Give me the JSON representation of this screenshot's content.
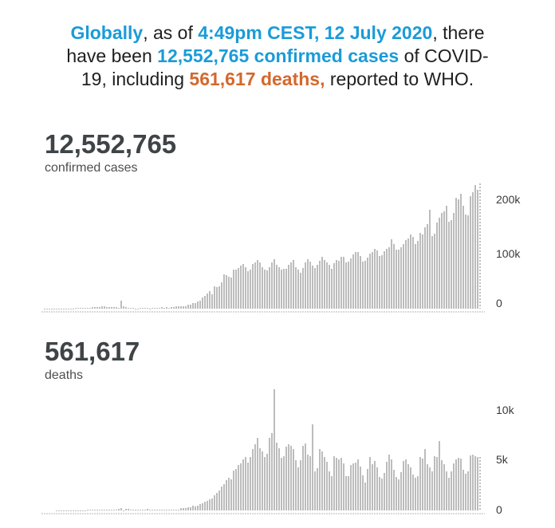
{
  "colors": {
    "highlight_blue": "#1b9bd8",
    "highlight_orange": "#d4682c",
    "bar_gray": "#bcbcbc",
    "text_dark": "#1f1f1f",
    "counter_dark": "#3f4446"
  },
  "headline": {
    "lines": [
      [
        {
          "t": "Globally",
          "s": "blue"
        },
        {
          "t": ", as of ",
          "s": "plain"
        },
        {
          "t": "4:49pm CEST, 12 July 2020",
          "s": "blue"
        },
        {
          "t": ", there",
          "s": "plain"
        }
      ],
      [
        {
          "t": "have been ",
          "s": "plain"
        },
        {
          "t": "12,552,765 confirmed cases",
          "s": "blue"
        },
        {
          "t": " of COVID-",
          "s": "plain"
        }
      ],
      [
        {
          "t": "19, including ",
          "s": "plain"
        },
        {
          "t": "561,617 deaths,",
          "s": "orange"
        },
        {
          "t": " reported to WHO.",
          "s": "plain"
        }
      ]
    ]
  },
  "counters": {
    "cases": {
      "value": "12,552,765",
      "label": "confirmed cases"
    },
    "deaths": {
      "value": "561,617",
      "label": "deaths"
    }
  },
  "chart_data": [
    {
      "type": "bar",
      "title": "confirmed cases",
      "total": "12,552,765",
      "x_axis": {
        "unit": "days",
        "points": 184,
        "end": "12 July 2020"
      },
      "ylim": [
        0,
        235000
      ],
      "grid": false,
      "legend": "none",
      "tick_side": "right",
      "yticks": [
        {
          "label": "200k",
          "value": 200000
        },
        {
          "label": "100k",
          "value": 100000
        },
        {
          "label": "0",
          "value": 0
        }
      ],
      "values": [
        0,
        1,
        6,
        8,
        14,
        22,
        45,
        60,
        90,
        140,
        150,
        280,
        460,
        700,
        780,
        1750,
        1450,
        1750,
        2000,
        1700,
        2100,
        2600,
        2800,
        3000,
        3400,
        3900,
        3700,
        3200,
        2600,
        3000,
        3100,
        2500,
        2000,
        15150,
        4000,
        2600,
        2200,
        2100,
        1900,
        560,
        540,
        900,
        1000,
        1300,
        1000,
        700,
        900,
        1350,
        1450,
        1800,
        2300,
        2000,
        2600,
        2200,
        2500,
        2800,
        4000,
        3700,
        3900,
        4200,
        4600,
        7500,
        7000,
        10000,
        11000,
        13900,
        15100,
        20000,
        24000,
        28000,
        32000,
        26000,
        40800,
        39800,
        40700,
        49200,
        63200,
        62000,
        58400,
        57600,
        72800,
        72700,
        75600,
        79300,
        82000,
        77200,
        68800,
        71500,
        82000,
        84700,
        89600,
        85000,
        76500,
        71800,
        70100,
        76600,
        84800,
        91500,
        81000,
        76800,
        72500,
        74000,
        73900,
        81500,
        84900,
        89600,
        76500,
        72100,
        66300,
        75500,
        84800,
        91900,
        86100,
        78700,
        74600,
        81200,
        87700,
        95800,
        90200,
        85600,
        80200,
        74200,
        84200,
        89600,
        88000,
        96000,
        94900,
        85100,
        86600,
        92500,
        99800,
        104500,
        103900,
        96400,
        87200,
        88900,
        94700,
        101200,
        104000,
        110300,
        106800,
        97700,
        98400,
        105600,
        110400,
        113700,
        128400,
        119600,
        108900,
        108200,
        113500,
        118700,
        127100,
        129000,
        136400,
        132600,
        119500,
        125200,
        140100,
        137200,
        150100,
        156000,
        183000,
        133300,
        138600,
        158300,
        167100,
        177000,
        179300,
        189100,
        160300,
        163900,
        176200,
        204000,
        201500,
        212300,
        189000,
        174000,
        172500,
        207000,
        214900,
        228100,
        219500,
        230400
      ]
    },
    {
      "type": "bar",
      "title": "deaths",
      "total": "561,617",
      "x_axis": {
        "unit": "days",
        "points": 184,
        "end": "12 July 2020"
      },
      "ylim": [
        0,
        12500
      ],
      "grid": false,
      "legend": "none",
      "tick_side": "right",
      "yticks": [
        {
          "label": "10k",
          "value": 10000
        },
        {
          "label": "5k",
          "value": 5000
        },
        {
          "label": "0",
          "value": 0
        }
      ],
      "values": [
        0,
        0,
        0,
        0,
        0,
        0,
        1,
        1,
        2,
        3,
        4,
        9,
        8,
        16,
        15,
        24,
        26,
        26,
        38,
        43,
        46,
        45,
        58,
        64,
        66,
        72,
        73,
        86,
        89,
        97,
        108,
        97,
        146,
        254,
        13,
        144,
        142,
        106,
        98,
        115,
        118,
        112,
        109,
        97,
        150,
        68,
        78,
        56,
        51,
        70,
        58,
        67,
        85,
        70,
        89,
        105,
        100,
        97,
        225,
        205,
        275,
        325,
        345,
        440,
        415,
        510,
        600,
        745,
        885,
        970,
        1090,
        1190,
        1545,
        1735,
        2010,
        2350,
        2650,
        3010,
        3220,
        3070,
        3950,
        4100,
        4500,
        4690,
        5100,
        5350,
        4750,
        5310,
        6100,
        6550,
        7250,
        6210,
        5870,
        5300,
        5650,
        7200,
        7680,
        12050,
        6750,
        6170,
        5270,
        5420,
        6340,
        6620,
        6430,
        6100,
        4970,
        4260,
        5010,
        6430,
        6680,
        5580,
        5430,
        8600,
        3860,
        4180,
        6100,
        5870,
        5350,
        4870,
        3860,
        3380,
        5430,
        5230,
        5060,
        5220,
        4650,
        3450,
        3390,
        4540,
        4700,
        4770,
        5060,
        4370,
        3470,
        2810,
        4150,
        5290,
        4640,
        4910,
        4310,
        3340,
        3160,
        3770,
        4830,
        5520,
        5070,
        4030,
        3360,
        3130,
        3830,
        4950,
        5070,
        4640,
        4310,
        3570,
        3230,
        3450,
        5290,
        5130,
        6110,
        4610,
        4270,
        3860,
        5380,
        5290,
        6870,
        4970,
        4580,
        3910,
        3250,
        3860,
        4690,
        5070,
        5230,
        5130,
        4050,
        3630,
        3860,
        5490,
        5570,
        5390,
        5280,
        5290
      ]
    }
  ]
}
